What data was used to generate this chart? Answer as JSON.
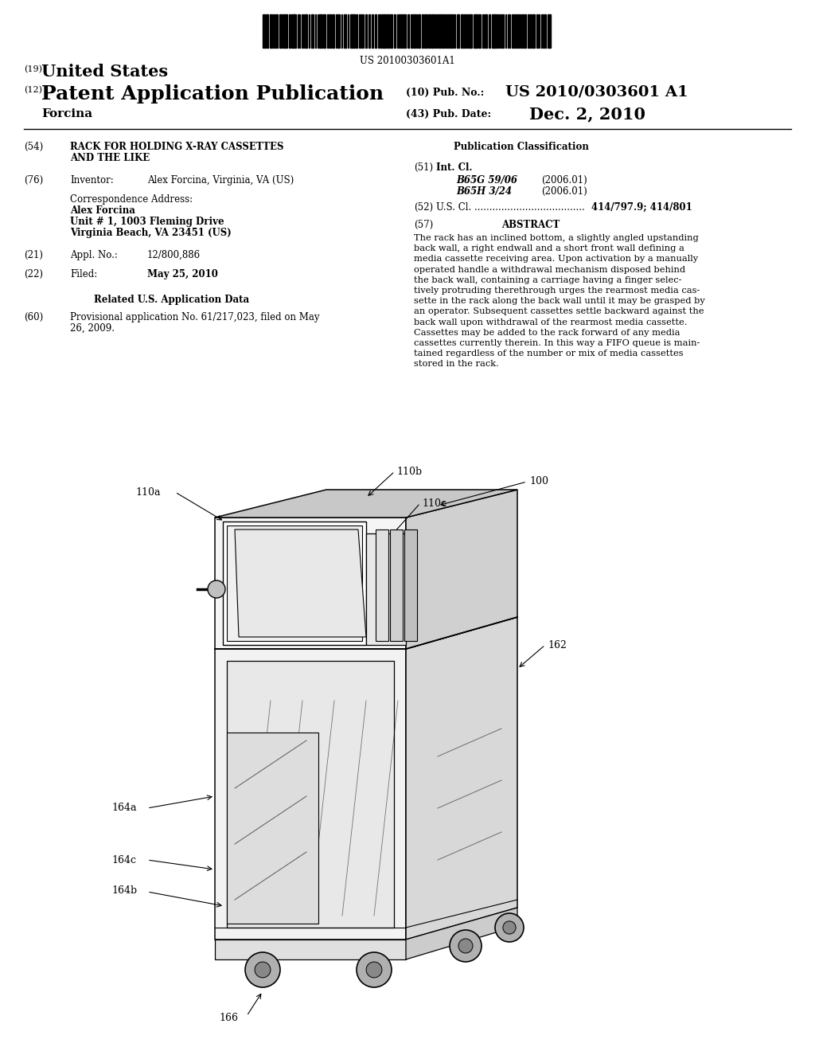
{
  "bg_color": "#ffffff",
  "barcode_text": "US 20100303601A1",
  "patent_number_label": "(19)",
  "patent_number_text": "United States",
  "pub_label": "(12)",
  "pub_text": "Patent Application Publication",
  "pub_no_label": "(10) Pub. No.:",
  "pub_no_value": "US 2010/0303601 A1",
  "inventor_name": "Forcina",
  "pub_date_label": "(43) Pub. Date:",
  "pub_date_value": "Dec. 2, 2010",
  "title_label": "(54)",
  "title_text1": "RACK FOR HOLDING X-RAY CASSETTES",
  "title_text2": "AND THE LIKE",
  "inventor_label": "(76)",
  "inventor_field": "Inventor:",
  "inventor_value": "Alex Forcina, Virginia, VA (US)",
  "corr_address": "Correspondence Address:",
  "corr_name": "Alex Forcina",
  "corr_addr1": "Unit # 1, 1003 Fleming Drive",
  "corr_addr2": "Virginia Beach, VA 23451 (US)",
  "appl_label": "(21)",
  "appl_field": "Appl. No.:",
  "appl_value": "12/800,886",
  "filed_label": "(22)",
  "filed_field": "Filed:",
  "filed_value": "May 25, 2010",
  "related_header": "Related U.S. Application Data",
  "prov_label": "(60)",
  "prov_line1": "Provisional application No. 61/217,023, filed on May",
  "prov_line2": "26, 2009.",
  "pub_class_header": "Publication Classification",
  "int_cl_label": "(51)",
  "int_cl_field": "Int. Cl.",
  "class1_code": "B65G 59/06",
  "class1_date": "(2006.01)",
  "class2_code": "B65H 3/24",
  "class2_date": "(2006.01)",
  "us_cl_label": "(52)",
  "us_cl_dots": "U.S. Cl. .....................................",
  "us_cl_value": "414/797.9; 414/801",
  "abstract_label": "(57)",
  "abstract_header": "ABSTRACT",
  "abstract_lines": [
    "The rack has an inclined bottom, a slightly angled upstanding",
    "back wall, a right endwall and a short front wall defining a",
    "media cassette receiving area. Upon activation by a manually",
    "operated handle a withdrawal mechanism disposed behind",
    "the back wall, containing a carriage having a finger selec-",
    "tively protruding therethrough urges the rearmost media cas-",
    "sette in the rack along the back wall until it may be grasped by",
    "an operator. Subsequent cassettes settle backward against the",
    "back wall upon withdrawal of the rearmost media cassette.",
    "Cassettes may be added to the rack forward of any media",
    "cassettes currently therein. In this way a FIFO queue is main-",
    "tained regardless of the number or mix of media cassettes",
    "stored in the rack."
  ],
  "fig_100": "100",
  "fig_110a": "110a",
  "fig_110b": "110b",
  "fig_110c": "110c",
  "fig_162": "162",
  "fig_164a": "164a",
  "fig_164b": "164b",
  "fig_164c": "164c",
  "fig_166": "166"
}
